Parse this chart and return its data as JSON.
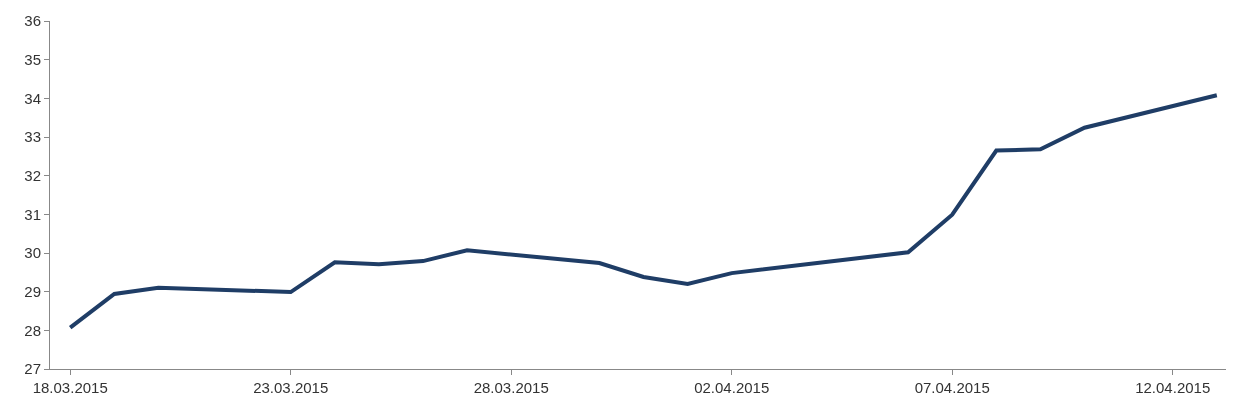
{
  "chart_data": {
    "type": "line",
    "x": [
      "2015-03-18",
      "2015-03-19",
      "2015-03-20",
      "2015-03-23",
      "2015-03-24",
      "2015-03-25",
      "2015-03-26",
      "2015-03-27",
      "2015-03-30",
      "2015-03-31",
      "2015-04-01",
      "2015-04-02",
      "2015-04-06",
      "2015-04-07",
      "2015-04-08",
      "2015-04-09",
      "2015-04-10",
      "2015-04-13"
    ],
    "series": [
      {
        "color": "#1f3d66",
        "values": [
          28.07,
          28.94,
          29.1,
          28.99,
          29.76,
          29.71,
          29.79,
          30.07,
          29.74,
          29.38,
          29.2,
          29.48,
          30.02,
          30.99,
          32.65,
          32.68,
          33.24,
          34.08
        ]
      }
    ],
    "xlim": [
      "2015-03-17T13:00",
      "2015-04-13T05:00"
    ],
    "xticks": [
      {
        "value": "2015-03-18",
        "label": "18.03.2015"
      },
      {
        "value": "2015-03-23",
        "label": "23.03.2015"
      },
      {
        "value": "2015-03-28",
        "label": "28.03.2015"
      },
      {
        "value": "2015-04-02",
        "label": "02.04.2015"
      },
      {
        "value": "2015-04-07",
        "label": "07.04.2015"
      },
      {
        "value": "2015-04-12",
        "label": "12.04.2015"
      }
    ],
    "ylim": [
      27,
      36
    ],
    "yticks": [
      27,
      28,
      29,
      30,
      31,
      32,
      33,
      34,
      35,
      36
    ],
    "marker": "none",
    "line_style": "solid"
  }
}
